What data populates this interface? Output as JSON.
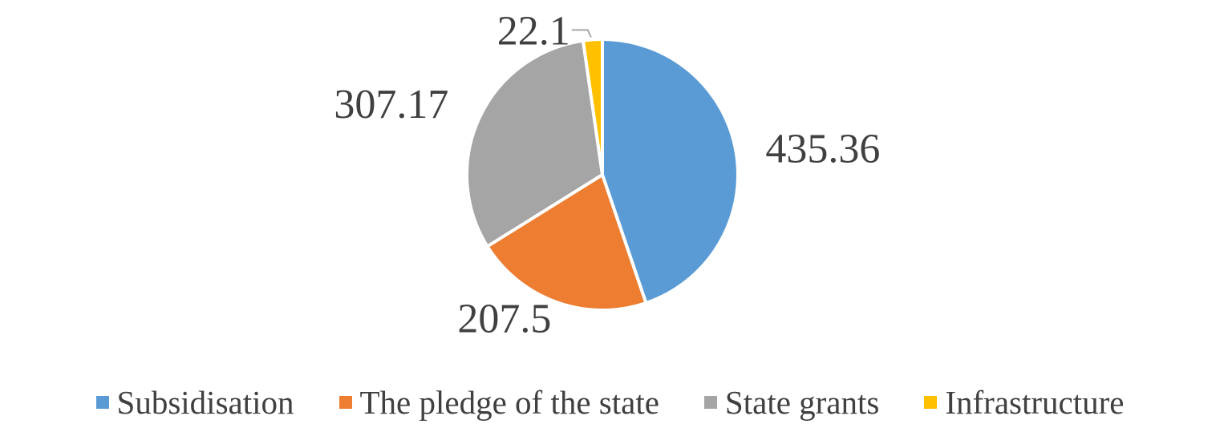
{
  "chart_data": {
    "type": "pie",
    "categories": [
      "Subsidisation",
      "The pledge of the state",
      "State grants",
      "Infrastructure"
    ],
    "values": [
      435.36,
      207.5,
      307.17,
      22.1
    ],
    "labels": [
      "435.36",
      "207.5",
      "307.17",
      "22.1"
    ],
    "colors": [
      "#5B9BD5",
      "#ED7D31",
      "#A5A5A5",
      "#FFC000"
    ],
    "title": "",
    "legend_position": "bottom",
    "start_angle": "12 o'clock",
    "direction": "clockwise"
  }
}
